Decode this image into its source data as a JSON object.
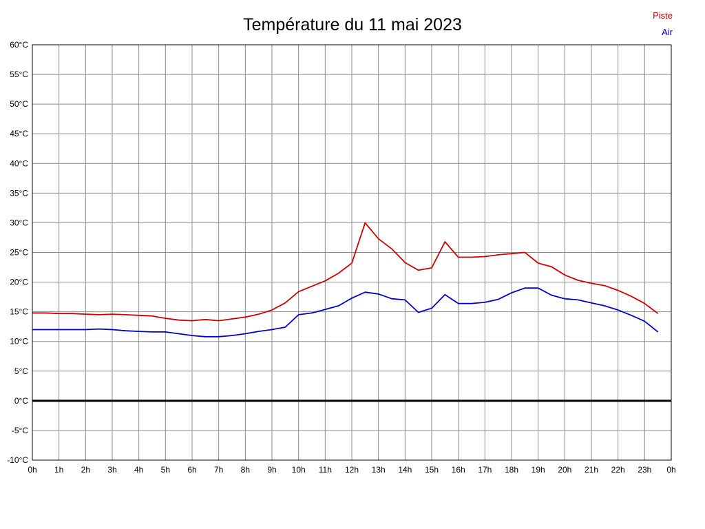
{
  "title": "Température du 11 mai 2023",
  "chart_data": {
    "type": "line",
    "title": "Température du 11 mai 2023",
    "xlim": [
      0,
      24
    ],
    "ylim": [
      -10,
      60
    ],
    "grid": true,
    "legend_position": "top-right",
    "grid_color": "#8c8c8c",
    "axis_color": "#000000",
    "zero_line": {
      "value": 0,
      "color": "#000000",
      "width": 3
    },
    "x": [
      0,
      0.5,
      1,
      1.5,
      2,
      2.5,
      3,
      3.5,
      4,
      4.5,
      5,
      5.5,
      6,
      6.5,
      7,
      7.5,
      8,
      8.5,
      9,
      9.5,
      10,
      10.5,
      11,
      11.5,
      12,
      12.5,
      13,
      13.5,
      14,
      14.5,
      15,
      15.5,
      16,
      16.5,
      17,
      17.5,
      18,
      18.5,
      19,
      19.5,
      20,
      20.5,
      21,
      21.5,
      22,
      22.5,
      23,
      23.5
    ],
    "series": [
      {
        "name": "Piste",
        "color": "#cc0000",
        "values": [
          14.8,
          14.8,
          14.7,
          14.7,
          14.6,
          14.5,
          14.6,
          14.5,
          14.4,
          14.3,
          13.9,
          13.6,
          13.5,
          13.7,
          13.5,
          13.8,
          14.1,
          14.6,
          15.3,
          16.5,
          18.4,
          19.3,
          20.2,
          21.5,
          23.2,
          30.0,
          27.3,
          25.6,
          23.3,
          22.0,
          22.4,
          26.8,
          24.2,
          24.2,
          24.3,
          24.6,
          24.8,
          25.0,
          23.2,
          22.6,
          21.2,
          20.3,
          19.8,
          19.4,
          18.6,
          17.6,
          16.4,
          14.7
        ]
      },
      {
        "name": "Air",
        "color": "#0000cc",
        "values": [
          12.0,
          12.0,
          12.0,
          12.0,
          12.0,
          12.1,
          12.0,
          11.8,
          11.7,
          11.6,
          11.6,
          11.3,
          11.0,
          10.8,
          10.8,
          11.0,
          11.3,
          11.7,
          12.0,
          12.4,
          14.5,
          14.8,
          15.4,
          16.0,
          17.3,
          18.3,
          18.0,
          17.2,
          17.0,
          14.9,
          15.6,
          17.9,
          16.4,
          16.4,
          16.6,
          17.1,
          18.2,
          19.0,
          19.0,
          17.8,
          17.2,
          17.0,
          16.5,
          16.0,
          15.3,
          14.4,
          13.4,
          11.6
        ]
      }
    ],
    "y_ticks": [
      {
        "value": 60,
        "label": "60°C"
      },
      {
        "value": 55,
        "label": "55°C"
      },
      {
        "value": 50,
        "label": "50°C"
      },
      {
        "value": 45,
        "label": "45°C"
      },
      {
        "value": 40,
        "label": "40°C"
      },
      {
        "value": 35,
        "label": "35°C"
      },
      {
        "value": 30,
        "label": "30°C"
      },
      {
        "value": 25,
        "label": "25°C"
      },
      {
        "value": 20,
        "label": "20°C"
      },
      {
        "value": 15,
        "label": "15°C"
      },
      {
        "value": 10,
        "label": "10°C"
      },
      {
        "value": 5,
        "label": "5°C"
      },
      {
        "value": 0,
        "label": "0°C"
      },
      {
        "value": -5,
        "label": "-5°C"
      },
      {
        "value": -10,
        "label": "-10°C"
      }
    ],
    "x_tick_labels": [
      "0h",
      "1h",
      "2h",
      "3h",
      "4h",
      "5h",
      "6h",
      "7h",
      "8h",
      "9h",
      "10h",
      "11h",
      "12h",
      "13h",
      "14h",
      "15h",
      "16h",
      "17h",
      "18h",
      "19h",
      "20h",
      "21h",
      "22h",
      "23h",
      "0h"
    ]
  }
}
